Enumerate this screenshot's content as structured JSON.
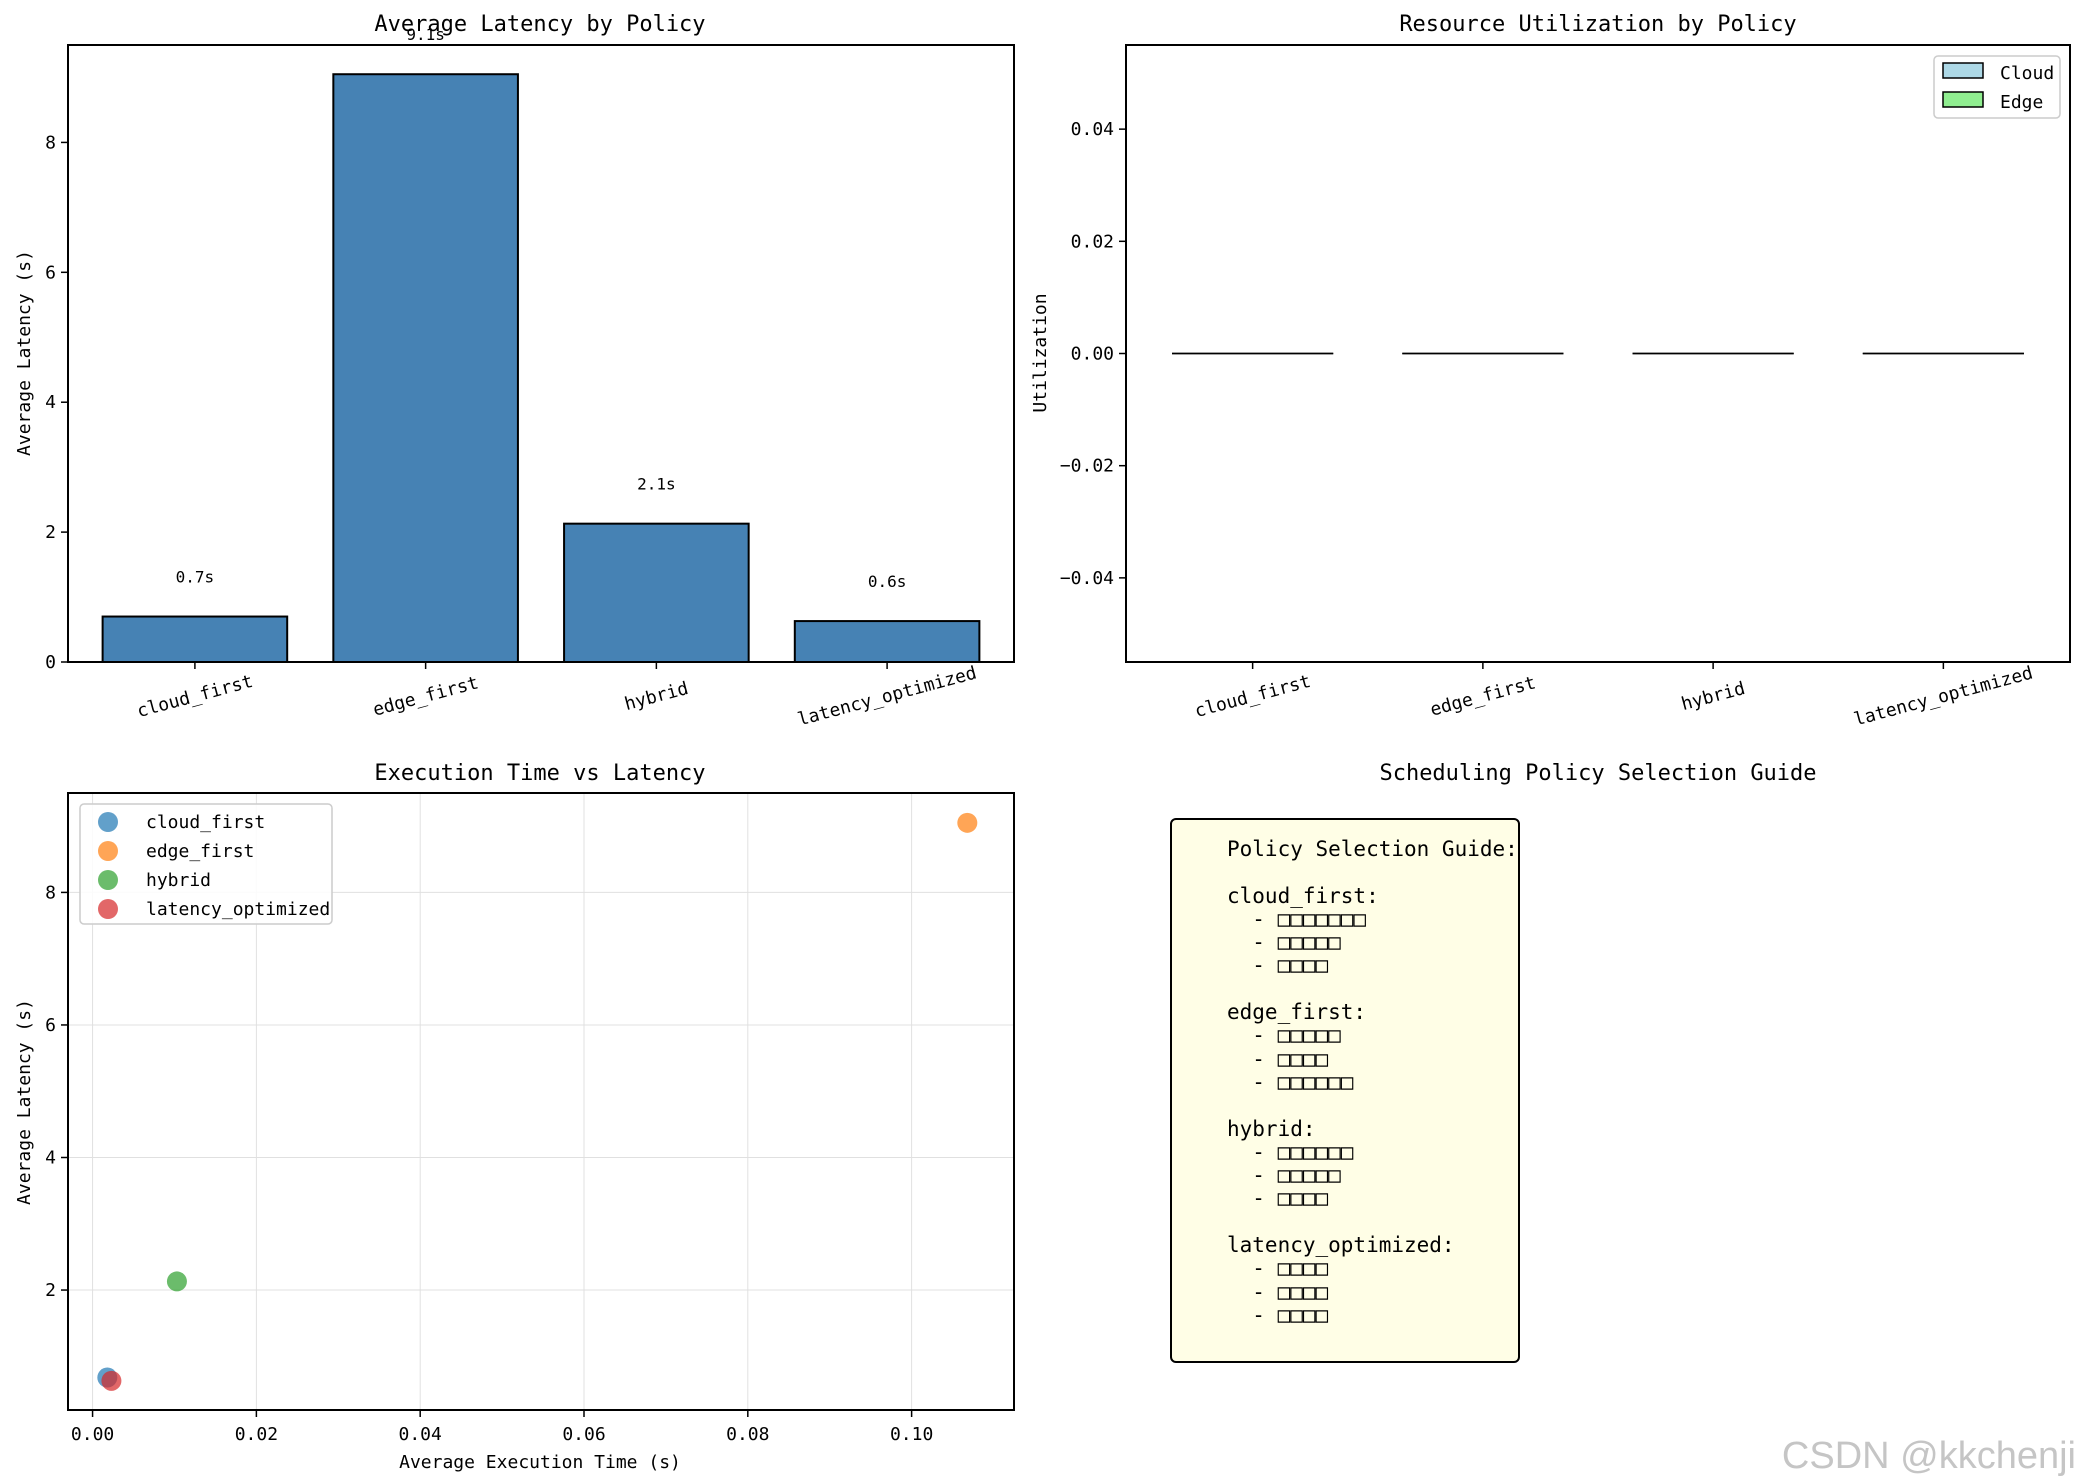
{
  "colors": {
    "bar": "#4682b4",
    "cloud": "#add8e6",
    "edge": "#90ee90",
    "guide_bg": "#fffee6",
    "series": [
      "#1f77b4",
      "#ff7f0e",
      "#2ca02c",
      "#d62728"
    ]
  },
  "chart_data": [
    {
      "type": "bar",
      "title": "Average Latency by Policy",
      "categories": [
        "cloud_first",
        "edge_first",
        "hybrid",
        "latency_optimized"
      ],
      "values": [
        0.7,
        9.05,
        2.13,
        0.63
      ],
      "value_labels": [
        "0.7s",
        "9.1s",
        "2.1s",
        "0.6s"
      ],
      "xlabel": "",
      "ylabel": "Average Latency (s)",
      "ylim": [
        0,
        9.5
      ],
      "yticks": [
        0,
        2,
        4,
        6,
        8
      ]
    },
    {
      "type": "bar",
      "title": "Resource Utilization by Policy",
      "categories": [
        "cloud_first",
        "edge_first",
        "hybrid",
        "latency_optimized"
      ],
      "series": [
        {
          "name": "Cloud",
          "values": [
            0,
            0,
            0,
            0
          ]
        },
        {
          "name": "Edge",
          "values": [
            0,
            0,
            0,
            0
          ]
        }
      ],
      "xlabel": "",
      "ylabel": "Utilization",
      "ylim": [
        -0.055,
        0.055
      ],
      "yticks": [
        -0.04,
        -0.02,
        0.0,
        0.02,
        0.04
      ],
      "ytick_labels": [
        "−0.04",
        "−0.02",
        "0.00",
        "0.02",
        "0.04"
      ],
      "legend_position": "top-right"
    },
    {
      "type": "scatter",
      "title": "Execution Time vs Latency",
      "series": [
        {
          "name": "cloud_first",
          "x": [
            0.0018
          ],
          "y": [
            0.68
          ]
        },
        {
          "name": "edge_first",
          "x": [
            0.1068
          ],
          "y": [
            9.05
          ]
        },
        {
          "name": "hybrid",
          "x": [
            0.0103
          ],
          "y": [
            2.13
          ]
        },
        {
          "name": "latency_optimized",
          "x": [
            0.0023
          ],
          "y": [
            0.63
          ]
        }
      ],
      "xlabel": "Average Execution Time (s)",
      "ylabel": "Average Latency (s)",
      "xlim": [
        -0.003,
        0.1125
      ],
      "ylim": [
        0.19,
        9.5
      ],
      "xticks": [
        0.0,
        0.02,
        0.04,
        0.06,
        0.08,
        0.1
      ],
      "xtick_labels": [
        "0.00",
        "0.02",
        "0.04",
        "0.06",
        "0.08",
        "0.10"
      ],
      "yticks": [
        2,
        4,
        6,
        8
      ],
      "grid": true,
      "legend_position": "top-left"
    }
  ],
  "guide": {
    "title": "Scheduling Policy Selection Guide",
    "text": "Policy Selection Guide:\n\ncloud_first:\n  - □□□□□□□\n  - □□□□□\n  - □□□□\n\nedge_first:\n  - □□□□□\n  - □□□□\n  - □□□□□□\n\nhybrid:\n  - □□□□□□\n  - □□□□□\n  - □□□□\n\nlatency_optimized:\n  - □□□□\n  - □□□□\n  - □□□□"
  },
  "watermark": "CSDN @kkchenji"
}
